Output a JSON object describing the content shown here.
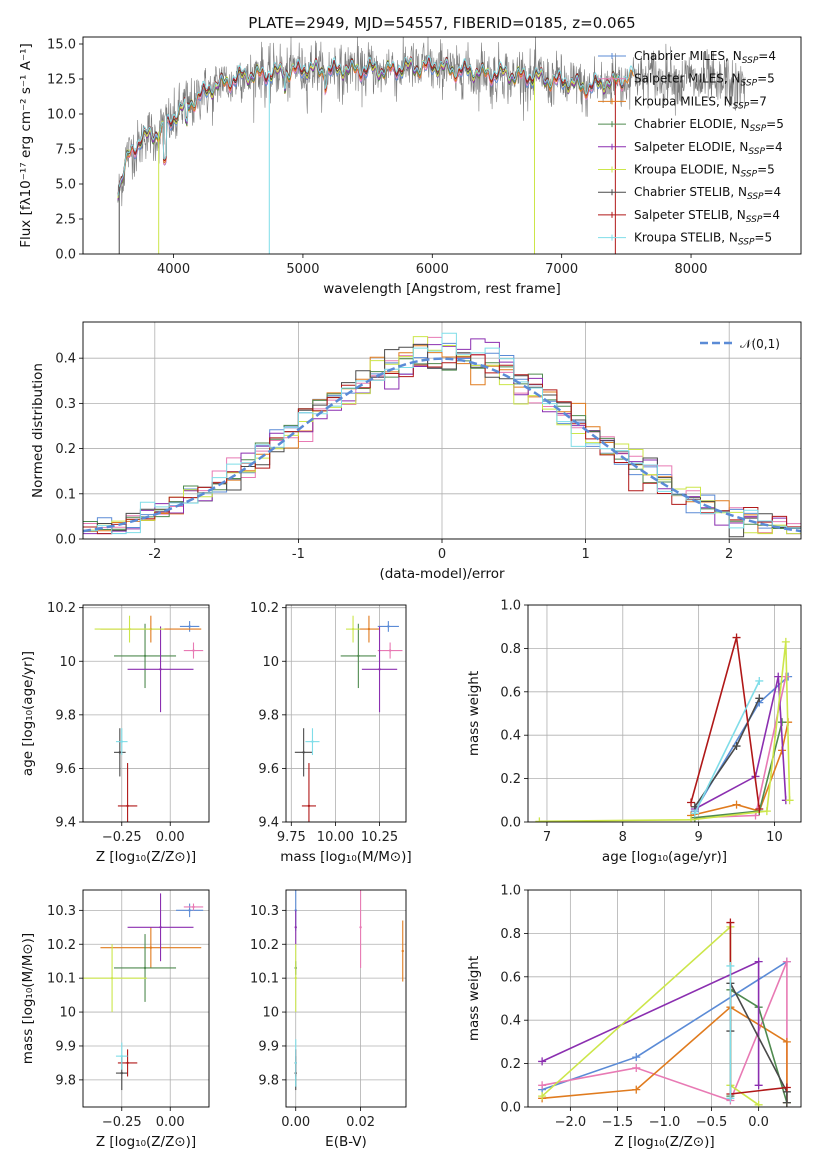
{
  "title": "PLATE=2949, MJD=54557, FIBERID=0185, z=0.065",
  "models": [
    {
      "name": "Chabrier MILES",
      "nssp": "4",
      "color": "#5b8bd6"
    },
    {
      "name": "Salpeter MILES",
      "nssp": "5",
      "color": "#e87ab4"
    },
    {
      "name": "Kroupa MILES",
      "nssp": "7",
      "color": "#e07b1e"
    },
    {
      "name": "Chabrier ELODIE",
      "nssp": "5",
      "color": "#4f8a4f"
    },
    {
      "name": "Salpeter ELODIE",
      "nssp": "4",
      "color": "#8b2fb0"
    },
    {
      "name": "Kroupa ELODIE",
      "nssp": "5",
      "color": "#cce64a"
    },
    {
      "name": "Chabrier STELIB",
      "nssp": "4",
      "color": "#4a4a4a"
    },
    {
      "name": "Salpeter STELIB",
      "nssp": "4",
      "color": "#b01818"
    },
    {
      "name": "Kroupa STELIB",
      "nssp": "5",
      "color": "#7fdde8"
    }
  ],
  "chart_data": [
    {
      "type": "line",
      "xlabel": "wavelength [Angstrom, rest frame]",
      "ylabel": "Flux [fλ10⁻¹⁷ erg cm⁻² s⁻¹ A⁻¹]",
      "xlim": [
        3300,
        8850
      ],
      "ylim": [
        0,
        15.5
      ],
      "xticks": [
        4000,
        5000,
        6000,
        7000,
        8000
      ],
      "yticks": [
        0,
        2.5,
        5.0,
        7.5,
        10.0,
        12.5,
        15.0
      ],
      "ytick_labels": [
        "0.0",
        "2.5",
        "5.0",
        "7.5",
        "10.0",
        "12.5",
        "15.0"
      ],
      "continuum": {
        "x": [
          3570,
          3650,
          3750,
          3850,
          3950,
          4050,
          4200,
          4400,
          4600,
          4800,
          5000,
          5200,
          5400,
          5600,
          5800,
          6000,
          6200,
          6400,
          6600,
          6800,
          7000,
          7200,
          7400,
          7600,
          7800,
          8000,
          8200,
          8400
        ],
        "y": [
          4.5,
          7.0,
          8.2,
          8.5,
          9.2,
          10.2,
          11.3,
          12.3,
          12.8,
          12.9,
          13.2,
          13.1,
          13.2,
          13.1,
          13.3,
          13.4,
          13.1,
          12.9,
          12.8,
          12.6,
          12.3,
          11.9,
          12.3,
          12.7,
          12.6,
          12.4,
          12.2,
          12.0
        ]
      },
      "grid": false
    },
    {
      "type": "histogram",
      "xlabel": "(data-model)/error",
      "ylabel": "Normed distribution",
      "xlim": [
        -2.5,
        2.5
      ],
      "ylim": [
        0,
        0.48
      ],
      "xticks": [
        -2,
        -1,
        0,
        1,
        2
      ],
      "yticks": [
        0,
        0.1,
        0.2,
        0.3,
        0.4
      ],
      "ytick_labels": [
        "0.0",
        "0.1",
        "0.2",
        "0.3",
        "0.4"
      ],
      "reference": {
        "name": "N(0,1)",
        "label_math": "𝒩(0,1)",
        "style": "dashed",
        "color": "#5b8bd6"
      },
      "bin_width": 0.1,
      "grid": true,
      "legend": "top-right"
    },
    {
      "type": "scatter",
      "xlabel": "Z [log₁₀(Z/Z⊙)]",
      "ylabel": "age  [log₁₀(age/yr)]",
      "xlim": [
        -0.45,
        0.2
      ],
      "ylim": [
        9.4,
        10.21
      ],
      "xticks": [
        -0.25,
        0.0
      ],
      "xtick_labels": [
        "−0.25",
        "0.00"
      ],
      "yticks": [
        9.4,
        9.6,
        9.8,
        10.0,
        10.2
      ],
      "points": [
        {
          "model": "Chabrier MILES",
          "x": 0.1,
          "y": 10.13,
          "xerr": 0.05,
          "yerr": 0.02
        },
        {
          "model": "Salpeter MILES",
          "x": 0.12,
          "y": 10.04,
          "xerr": 0.05,
          "yerr": 0.03
        },
        {
          "model": "Kroupa MILES",
          "x": -0.1,
          "y": 10.12,
          "xerr": 0.26,
          "yerr": 0.05
        },
        {
          "model": "Chabrier ELODIE",
          "x": -0.13,
          "y": 10.02,
          "xerr": 0.16,
          "yerr": 0.12
        },
        {
          "model": "Salpeter ELODIE",
          "x": -0.05,
          "y": 9.97,
          "xerr": 0.17,
          "yerr": 0.16
        },
        {
          "model": "Kroupa ELODIE",
          "x": -0.21,
          "y": 10.12,
          "xerr": 0.18,
          "yerr": 0.05
        },
        {
          "model": "Chabrier STELIB",
          "x": -0.26,
          "y": 9.66,
          "xerr": 0.03,
          "yerr": 0.09
        },
        {
          "model": "Salpeter STELIB",
          "x": -0.22,
          "y": 9.46,
          "xerr": 0.05,
          "yerr": 0.16
        },
        {
          "model": "Kroupa STELIB",
          "x": -0.25,
          "y": 9.7,
          "xerr": 0.03,
          "yerr": 0.05
        }
      ]
    },
    {
      "type": "scatter",
      "xlabel": "mass [log₁₀(M/M⊙)]",
      "ylabel": "",
      "xlim": [
        9.72,
        10.4
      ],
      "ylim": [
        9.4,
        10.21
      ],
      "xticks": [
        9.75,
        10.0,
        10.25
      ],
      "xtick_labels": [
        "9.75",
        "10.00",
        "10.25"
      ],
      "yticks": [
        9.4,
        9.6,
        9.8,
        10.0,
        10.2
      ],
      "points": [
        {
          "model": "Chabrier MILES",
          "x": 10.3,
          "y": 10.13,
          "xerr": 0.06,
          "yerr": 0.02
        },
        {
          "model": "Salpeter MILES",
          "x": 10.31,
          "y": 10.04,
          "xerr": 0.07,
          "yerr": 0.03
        },
        {
          "model": "Kroupa MILES",
          "x": 10.19,
          "y": 10.12,
          "xerr": 0.06,
          "yerr": 0.05
        },
        {
          "model": "Chabrier ELODIE",
          "x": 10.13,
          "y": 10.02,
          "xerr": 0.1,
          "yerr": 0.12
        },
        {
          "model": "Salpeter ELODIE",
          "x": 10.25,
          "y": 9.97,
          "xerr": 0.1,
          "yerr": 0.16
        },
        {
          "model": "Kroupa ELODIE",
          "x": 10.1,
          "y": 10.12,
          "xerr": 0.04,
          "yerr": 0.05
        },
        {
          "model": "Chabrier STELIB",
          "x": 9.82,
          "y": 9.66,
          "xerr": 0.05,
          "yerr": 0.09
        },
        {
          "model": "Salpeter STELIB",
          "x": 9.85,
          "y": 9.46,
          "xerr": 0.04,
          "yerr": 0.16
        },
        {
          "model": "Kroupa STELIB",
          "x": 9.87,
          "y": 9.7,
          "xerr": 0.04,
          "yerr": 0.05
        }
      ]
    },
    {
      "type": "line",
      "xlabel": "age  [log₁₀(age/yr)]",
      "ylabel": "mass weight",
      "xlim": [
        6.75,
        10.35
      ],
      "ylim": [
        0,
        1.0
      ],
      "xticks": [
        7,
        8,
        9,
        10
      ],
      "yticks": [
        0,
        0.2,
        0.4,
        0.6,
        0.8,
        1.0
      ],
      "ytick_labels": [
        "0.0",
        "0.2",
        "0.4",
        "0.6",
        "0.8",
        "1.0"
      ],
      "grid": true,
      "series": [
        {
          "model": "Chabrier MILES",
          "x": [
            8.95,
            9.8,
            10.18
          ],
          "y": [
            0.05,
            0.55,
            0.67
          ]
        },
        {
          "model": "Salpeter MILES",
          "x": [
            8.95,
            9.75,
            10.15
          ],
          "y": [
            0.02,
            0.03,
            0.67
          ]
        },
        {
          "model": "Kroupa MILES",
          "x": [
            8.9,
            9.5,
            9.8,
            10.1,
            10.18
          ],
          "y": [
            0.03,
            0.08,
            0.05,
            0.33,
            0.46
          ]
        },
        {
          "model": "Chabrier ELODIE",
          "x": [
            8.95,
            9.8,
            10.1
          ],
          "y": [
            0.02,
            0.05,
            0.46
          ]
        },
        {
          "model": "Salpeter ELODIE",
          "x": [
            8.95,
            9.75,
            10.05,
            10.15
          ],
          "y": [
            0.06,
            0.21,
            0.67,
            0.1
          ]
        },
        {
          "model": "Kroupa ELODIE",
          "x": [
            6.9,
            8.9,
            9.9,
            10.15,
            10.2
          ],
          "y": [
            0.003,
            0.01,
            0.05,
            0.83,
            0.1
          ]
        },
        {
          "model": "Chabrier STELIB",
          "x": [
            8.95,
            9.5,
            9.8
          ],
          "y": [
            0.07,
            0.35,
            0.57
          ]
        },
        {
          "model": "Salpeter STELIB",
          "x": [
            8.9,
            9.5,
            9.8
          ],
          "y": [
            0.09,
            0.85,
            0.06
          ]
        },
        {
          "model": "Kroupa STELIB",
          "x": [
            8.95,
            9.8
          ],
          "y": [
            0.04,
            0.65
          ]
        }
      ]
    },
    {
      "type": "scatter",
      "xlabel": "Z [log₁₀(Z/Z⊙)]",
      "ylabel": "mass [log₁₀(M/M⊙)]",
      "xlim": [
        -0.45,
        0.2
      ],
      "ylim": [
        9.72,
        10.36
      ],
      "xticks": [
        -0.25,
        0.0
      ],
      "xtick_labels": [
        "−0.25",
        "0.00"
      ],
      "yticks": [
        9.8,
        9.9,
        10.0,
        10.1,
        10.2,
        10.3
      ],
      "points": [
        {
          "model": "Chabrier MILES",
          "x": 0.1,
          "y": 10.3,
          "xerr": 0.07,
          "yerr": 0.02
        },
        {
          "model": "Salpeter MILES",
          "x": 0.12,
          "y": 10.31,
          "xerr": 0.05,
          "yerr": 0.01
        },
        {
          "model": "Kroupa MILES",
          "x": -0.1,
          "y": 10.19,
          "xerr": 0.26,
          "yerr": 0.06
        },
        {
          "model": "Chabrier ELODIE",
          "x": -0.13,
          "y": 10.13,
          "xerr": 0.16,
          "yerr": 0.1
        },
        {
          "model": "Salpeter ELODIE",
          "x": -0.05,
          "y": 10.25,
          "xerr": 0.17,
          "yerr": 0.1
        },
        {
          "model": "Kroupa ELODIE",
          "x": -0.3,
          "y": 10.1,
          "xerr": 0.18,
          "yerr": 0.1
        },
        {
          "model": "Chabrier STELIB",
          "x": -0.25,
          "y": 9.82,
          "xerr": 0.03,
          "yerr": 0.05
        },
        {
          "model": "Salpeter STELIB",
          "x": -0.22,
          "y": 9.85,
          "xerr": 0.05,
          "yerr": 0.04
        },
        {
          "model": "Kroupa STELIB",
          "x": -0.25,
          "y": 9.87,
          "xerr": 0.03,
          "yerr": 0.04
        }
      ]
    },
    {
      "type": "scatter",
      "xlabel": "E(B-V)",
      "ylabel": "",
      "xlim": [
        -0.003,
        0.034
      ],
      "ylim": [
        9.72,
        10.36
      ],
      "xticks": [
        0.0,
        0.02
      ],
      "xtick_labels": [
        "0.00",
        "0.02"
      ],
      "yticks": [
        9.8,
        9.9,
        10.0,
        10.1,
        10.2,
        10.3
      ],
      "points": [
        {
          "model": "Chabrier MILES",
          "x": 0.0,
          "y": 10.3,
          "yerr": 0.06
        },
        {
          "model": "Salpeter MILES",
          "x": 0.02,
          "y": 10.25,
          "yerr": 0.12
        },
        {
          "model": "Kroupa MILES",
          "x": 0.033,
          "y": 10.18,
          "yerr": 0.09
        },
        {
          "model": "Chabrier ELODIE",
          "x": 0.0,
          "y": 10.13,
          "yerr": 0.02
        },
        {
          "model": "Salpeter ELODIE",
          "x": 0.0,
          "y": 10.25,
          "yerr": 0.05
        },
        {
          "model": "Kroupa ELODIE",
          "x": 0.0,
          "y": 10.1,
          "yerr": 0.1
        },
        {
          "model": "Chabrier STELIB",
          "x": 0.0,
          "y": 9.82,
          "yerr": 0.05
        },
        {
          "model": "Salpeter STELIB",
          "x": 0.0,
          "y": 9.85,
          "yerr": 0.04
        },
        {
          "model": "Kroupa STELIB",
          "x": 0.0,
          "y": 9.85,
          "yerr": 0.07
        }
      ]
    },
    {
      "type": "line",
      "xlabel": "Z [log₁₀(Z/Z⊙)]",
      "ylabel": "mass weight",
      "xlim": [
        -2.45,
        0.45
      ],
      "ylim": [
        0,
        1.0
      ],
      "xticks": [
        -2.0,
        -1.5,
        -1.0,
        -0.5,
        0.0
      ],
      "xtick_labels": [
        "−2.0",
        "−1.5",
        "−1.0",
        "−0.5",
        "0.0"
      ],
      "yticks": [
        0,
        0.2,
        0.4,
        0.6,
        0.8,
        1.0
      ],
      "ytick_labels": [
        "0.0",
        "0.2",
        "0.4",
        "0.6",
        "0.8",
        "1.0"
      ],
      "grid": true,
      "series": [
        {
          "model": "Chabrier MILES",
          "x": [
            -2.3,
            -1.3,
            0.3
          ],
          "y": [
            0.08,
            0.23,
            0.67
          ]
        },
        {
          "model": "Salpeter MILES",
          "x": [
            -2.3,
            -1.3,
            -0.3,
            0.3,
            0.3
          ],
          "y": [
            0.1,
            0.18,
            0.03,
            0.67,
            0.02
          ]
        },
        {
          "model": "Kroupa MILES",
          "x": [
            -2.3,
            -1.3,
            -0.3,
            0.3,
            0.3
          ],
          "y": [
            0.04,
            0.08,
            0.46,
            0.3,
            0.02
          ]
        },
        {
          "model": "Chabrier ELODIE",
          "x": [
            -0.3,
            -0.3,
            0.0,
            0.3
          ],
          "y": [
            0.05,
            0.54,
            0.46,
            0.02
          ]
        },
        {
          "model": "Salpeter ELODIE",
          "x": [
            -2.3,
            0.0,
            0.0
          ],
          "y": [
            0.21,
            0.67,
            0.1
          ]
        },
        {
          "model": "Kroupa ELODIE",
          "x": [
            -2.3,
            -0.3,
            -0.3,
            0.0
          ],
          "y": [
            0.05,
            0.83,
            0.1,
            0.01
          ]
        },
        {
          "model": "Chabrier STELIB",
          "x": [
            -0.3,
            -0.3,
            0.3,
            0.3
          ],
          "y": [
            0.35,
            0.57,
            0.07,
            0.02
          ]
        },
        {
          "model": "Salpeter STELIB",
          "x": [
            -0.3,
            -0.3,
            0.3
          ],
          "y": [
            0.85,
            0.06,
            0.09
          ]
        },
        {
          "model": "Kroupa STELIB",
          "x": [
            -0.3,
            -0.3
          ],
          "y": [
            0.04,
            0.65
          ]
        }
      ]
    }
  ]
}
